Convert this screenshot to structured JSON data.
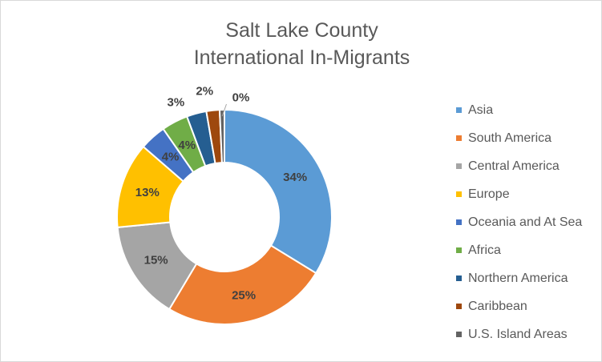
{
  "chart_data": {
    "type": "pie",
    "variant": "donut",
    "title": [
      "Salt Lake County",
      "International In-Migrants"
    ],
    "legend_position": "right",
    "slices": [
      {
        "name": "Asia",
        "value": 34,
        "label": "34%",
        "color": "#5B9BD5"
      },
      {
        "name": "South America",
        "value": 25,
        "label": "25%",
        "color": "#ED7D31"
      },
      {
        "name": "Central America",
        "value": 15,
        "label": "15%",
        "color": "#A5A5A5"
      },
      {
        "name": "Europe",
        "value": 13,
        "label": "13%",
        "color": "#FFC000"
      },
      {
        "name": "Oceania and At Sea",
        "value": 4,
        "label": "4%",
        "color": "#4472C4"
      },
      {
        "name": "Africa",
        "value": 4,
        "label": "4%",
        "color": "#70AD47"
      },
      {
        "name": "Northern America",
        "value": 3,
        "label": "3%",
        "color": "#255E91"
      },
      {
        "name": "Caribbean",
        "value": 2,
        "label": "2%",
        "color": "#9E480E"
      },
      {
        "name": "U.S. Island Areas",
        "value": 0,
        "label": "0%",
        "color": "#636363"
      }
    ]
  }
}
